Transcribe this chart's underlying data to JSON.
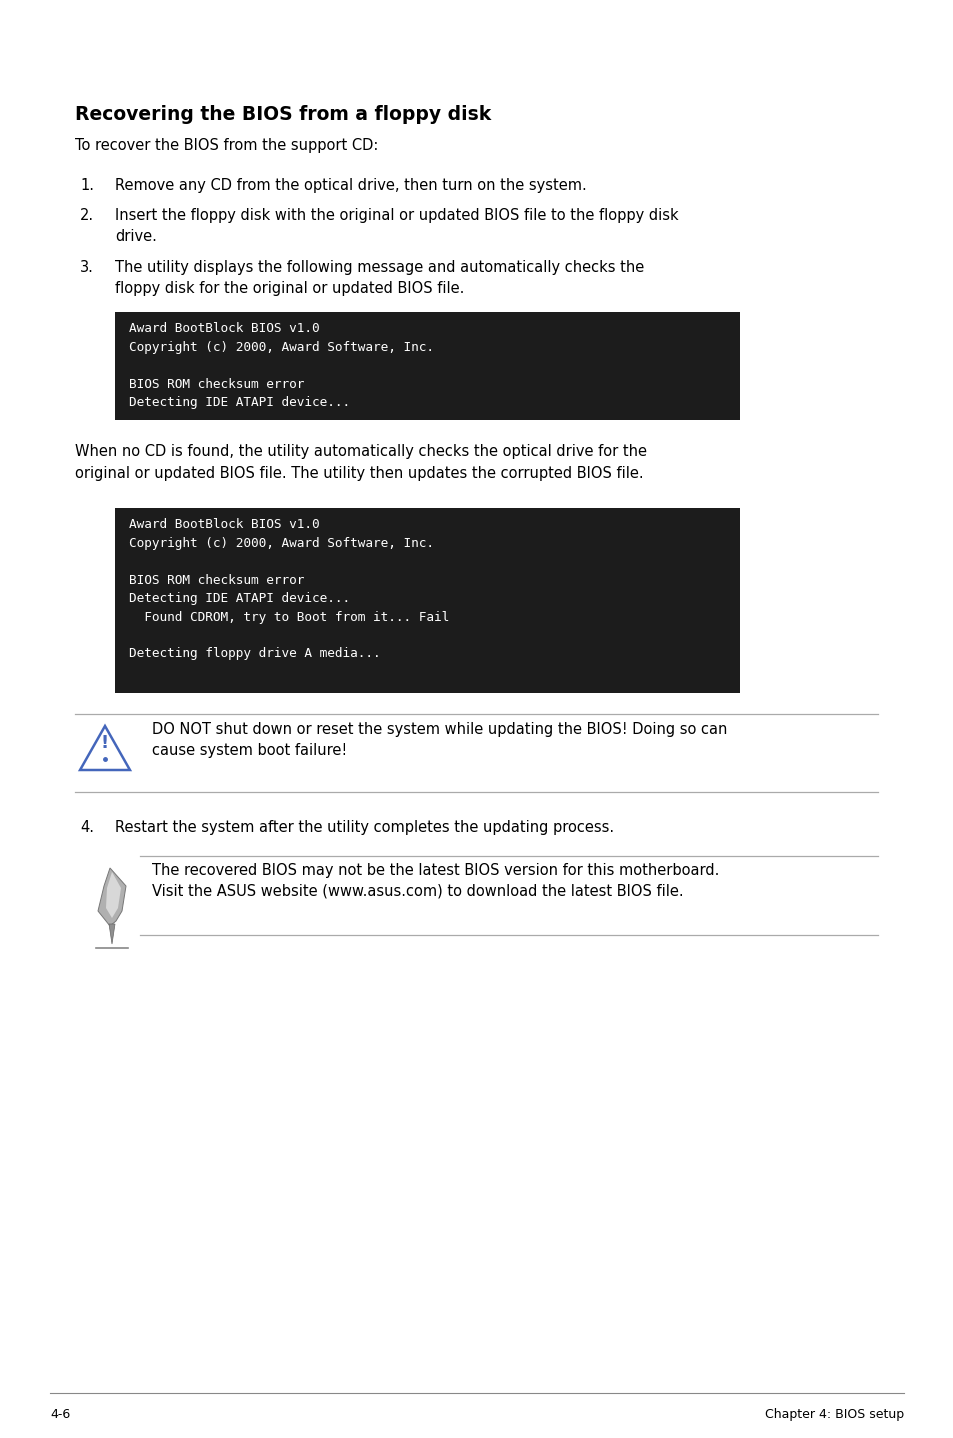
{
  "title": "Recovering the BIOS from a floppy disk",
  "subtitle": "To recover the BIOS from the support CD:",
  "items": [
    "Remove any CD from the optical drive, then turn on the system.",
    "Insert the floppy disk with the original or updated BIOS file to the floppy disk\ndrive.",
    "The utility displays the following message and automatically checks the\nfloppy disk for the original or updated BIOS file."
  ],
  "code_box1": "Award BootBlock BIOS v1.0\nCopyright (c) 2000, Award Software, Inc.\n\nBIOS ROM checksum error\nDetecting IDE ATAPI device...",
  "between_text": "When no CD is found, the utility automatically checks the optical drive for the\noriginal or updated BIOS file. The utility then updates the corrupted BIOS file.",
  "code_box2": "Award BootBlock BIOS v1.0\nCopyright (c) 2000, Award Software, Inc.\n\nBIOS ROM checksum error\nDetecting IDE ATAPI device...\n  Found CDROM, try to Boot from it... Fail\n\nDetecting floppy drive A media...",
  "warning_text": "DO NOT shut down or reset the system while updating the BIOS! Doing so can\ncause system boot failure!",
  "item4": "Restart the system after the utility completes the updating process.",
  "note_text": "The recovered BIOS may not be the latest BIOS version for this motherboard.\nVisit the ASUS website (www.asus.com) to download the latest BIOS file.",
  "footer_left": "4-6",
  "footer_right": "Chapter 4: BIOS setup",
  "bg_color": "#ffffff",
  "text_color": "#000000",
  "code_bg": "#1c1c1c",
  "code_text": "#ffffff",
  "line_color": "#aaaaaa",
  "warn_icon_color": "#4466bb",
  "title_font_size": 13.5,
  "body_font_size": 10.5,
  "code_font_size": 9.2,
  "footer_font_size": 9
}
